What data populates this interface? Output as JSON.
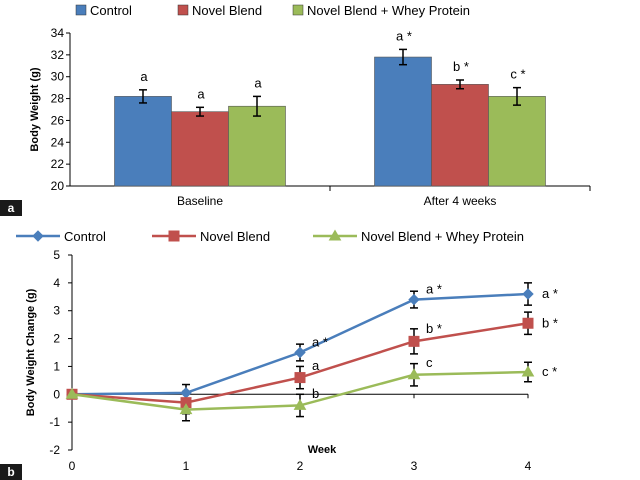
{
  "chart_data": [
    {
      "type": "bar",
      "panel_label": "a",
      "categories": [
        "Baseline",
        "After 4 weeks"
      ],
      "ylabel": "Body Weight (g)",
      "ylim": [
        20,
        34
      ],
      "yticks": [
        20,
        22,
        24,
        26,
        28,
        30,
        32,
        34
      ],
      "legend": {
        "placement": "top"
      },
      "series": [
        {
          "name": "Control",
          "color": "#4a7ebb",
          "values": [
            28.2,
            31.8
          ],
          "errors": [
            0.6,
            0.7
          ],
          "labels": [
            "a",
            "a *"
          ]
        },
        {
          "name": "Novel Blend",
          "color": "#c0504d",
          "values": [
            26.8,
            29.3
          ],
          "errors": [
            0.4,
            0.4
          ],
          "labels": [
            "a",
            "b *"
          ]
        },
        {
          "name": "Novel Blend + Whey Protein",
          "color": "#9bbb59",
          "values": [
            27.3,
            28.2
          ],
          "errors": [
            0.9,
            0.8
          ],
          "labels": [
            "a",
            "c *"
          ]
        }
      ]
    },
    {
      "type": "line",
      "panel_label": "b",
      "x": [
        0,
        1,
        2,
        3,
        4
      ],
      "xlabel": "Week",
      "ylabel": "Body Weight Change (g)",
      "xlim": [
        0,
        4
      ],
      "ylim": [
        -2,
        5
      ],
      "xticks": [
        0,
        1,
        2,
        3,
        4
      ],
      "yticks": [
        -2,
        -1,
        0,
        1,
        2,
        3,
        4,
        5
      ],
      "legend": {
        "placement": "top"
      },
      "series": [
        {
          "name": "Control",
          "color": "#4a7ebb",
          "marker": "diamond",
          "values": [
            0,
            0.05,
            1.5,
            3.4,
            3.6
          ],
          "errors": [
            0,
            0.3,
            0.3,
            0.3,
            0.4
          ],
          "labels": [
            "",
            "",
            "a *",
            "a *",
            "a *"
          ]
        },
        {
          "name": "Novel Blend",
          "color": "#c0504d",
          "marker": "square",
          "values": [
            0,
            -0.3,
            0.6,
            1.9,
            2.55
          ],
          "errors": [
            0,
            0.4,
            0.4,
            0.45,
            0.4
          ],
          "labels": [
            "",
            "",
            "a",
            "b *",
            "b *"
          ]
        },
        {
          "name": "Novel Blend + Whey Protein",
          "color": "#9bbb59",
          "marker": "triangle",
          "values": [
            0,
            -0.55,
            -0.4,
            0.7,
            0.8
          ],
          "errors": [
            0,
            0.4,
            0.4,
            0.4,
            0.35
          ],
          "labels": [
            "",
            "",
            "b",
            "c",
            "c *"
          ]
        }
      ]
    }
  ]
}
